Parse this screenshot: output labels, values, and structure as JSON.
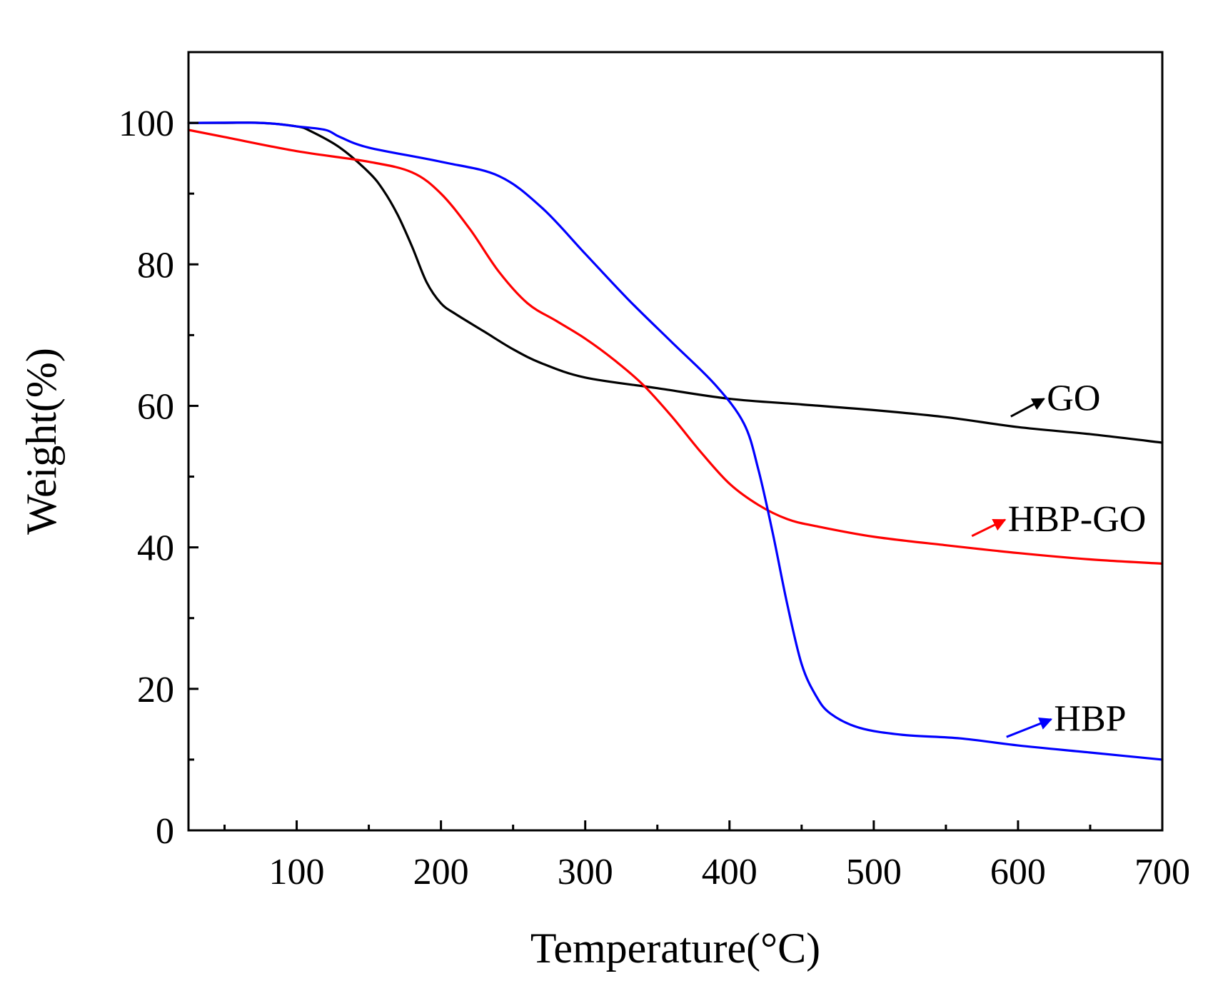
{
  "chart_data": {
    "type": "line",
    "title": "",
    "xlabel": "Temperature(°C)",
    "ylabel": "Weight(%)",
    "xlim": [
      25,
      700
    ],
    "ylim": [
      0,
      110
    ],
    "xticks": [
      100,
      200,
      300,
      400,
      500,
      600,
      700
    ],
    "yticks": [
      0,
      20,
      40,
      60,
      80,
      100
    ],
    "grid": false,
    "series": [
      {
        "name": "GO",
        "color": "#000000",
        "x": [
          25,
          50,
          75,
          100,
          110,
          130,
          150,
          160,
          170,
          180,
          190,
          200,
          210,
          230,
          250,
          270,
          300,
          350,
          400,
          450,
          500,
          550,
          600,
          650,
          700
        ],
        "y": [
          100.0,
          100.0,
          100.0,
          99.5,
          98.8,
          96.5,
          93.0,
          90.5,
          87.0,
          82.5,
          77.5,
          74.5,
          73.0,
          70.5,
          68.0,
          66.0,
          64.0,
          62.5,
          61.0,
          60.2,
          59.4,
          58.4,
          57.0,
          56.0,
          54.8
        ]
      },
      {
        "name": "HBP-GO",
        "color": "#ff0000",
        "x": [
          25,
          50,
          100,
          150,
          180,
          200,
          220,
          240,
          260,
          280,
          300,
          320,
          340,
          360,
          380,
          400,
          420,
          440,
          460,
          500,
          550,
          600,
          650,
          700
        ],
        "y": [
          99.0,
          98.0,
          96.0,
          94.5,
          93.0,
          90.0,
          85.0,
          79.0,
          74.5,
          72.0,
          69.5,
          66.5,
          63.0,
          58.5,
          53.5,
          49.0,
          46.0,
          44.0,
          43.0,
          41.5,
          40.3,
          39.2,
          38.3,
          37.7
        ]
      },
      {
        "name": "HBP",
        "color": "#0000ff",
        "x": [
          25,
          75,
          100,
          120,
          130,
          150,
          200,
          240,
          270,
          300,
          330,
          360,
          390,
          410,
          420,
          430,
          440,
          450,
          460,
          470,
          490,
          520,
          560,
          600,
          650,
          700
        ],
        "y": [
          100.0,
          100.0,
          99.5,
          99.0,
          98.0,
          96.5,
          94.5,
          92.5,
          88.0,
          81.5,
          75.0,
          69.0,
          63.0,
          57.5,
          51.0,
          42.0,
          32.0,
          23.5,
          19.0,
          16.5,
          14.5,
          13.5,
          13.0,
          12.0,
          11.0,
          10.0
        ]
      }
    ],
    "annotations": [
      {
        "text": "GO",
        "color": "#000000",
        "arrow_from": [
          595,
          58.5
        ],
        "arrow_to": [
          618,
          61.0
        ]
      },
      {
        "text": "HBP-GO",
        "color": "#ff0000",
        "arrow_from": [
          568,
          41.6
        ],
        "arrow_to": [
          591,
          43.9
        ]
      },
      {
        "text": "HBP",
        "color": "#0000ff",
        "arrow_from": [
          592,
          13.2
        ],
        "arrow_to": [
          623,
          15.7
        ]
      }
    ]
  }
}
